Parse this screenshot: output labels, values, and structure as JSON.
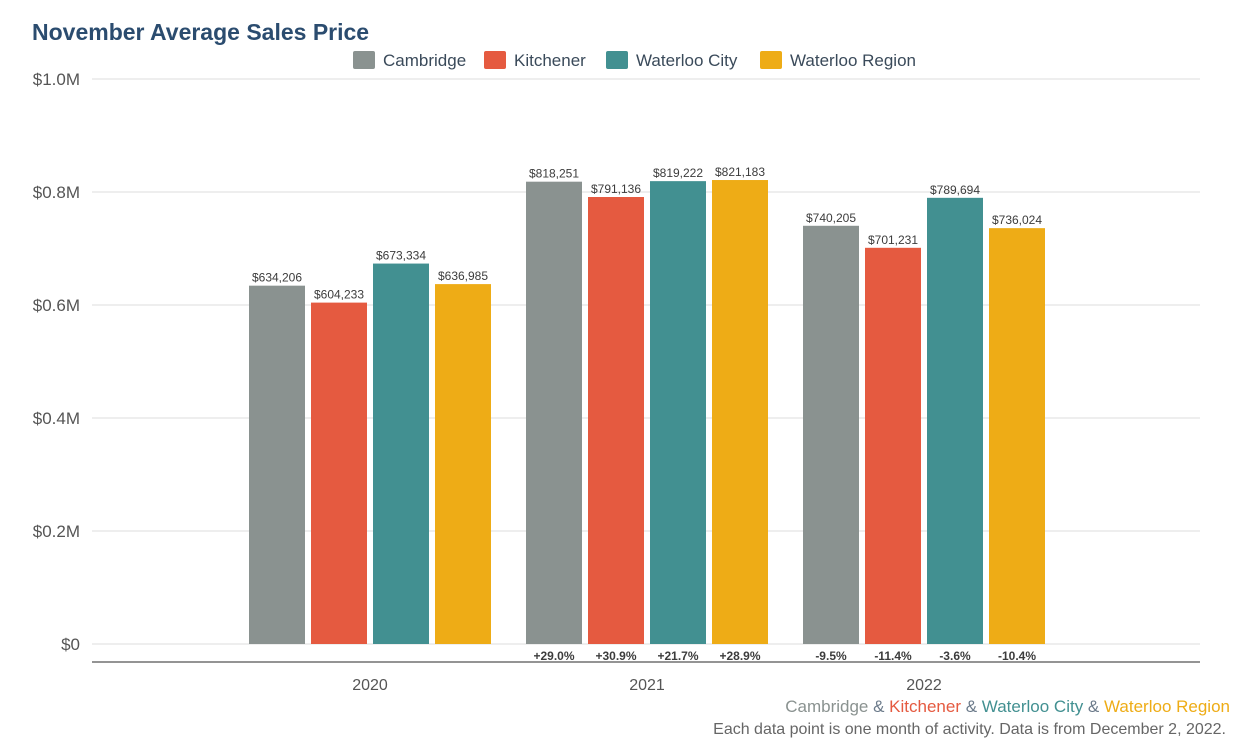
{
  "chart_data": {
    "type": "bar",
    "title": "November Average Sales Price",
    "categories": [
      "2020",
      "2021",
      "2022"
    ],
    "series": [
      {
        "name": "Cambridge",
        "color": "#8a9290",
        "values": [
          634206,
          818251,
          740205
        ],
        "value_labels": [
          "$634,206",
          "$818,251",
          "$740,205"
        ],
        "change_labels": [
          "",
          "+29.0%",
          "-9.5%"
        ]
      },
      {
        "name": "Kitchener",
        "color": "#e55a40",
        "values": [
          604233,
          791136,
          701231
        ],
        "value_labels": [
          "$604,233",
          "$791,136",
          "$701,231"
        ],
        "change_labels": [
          "",
          "+30.9%",
          "-11.4%"
        ]
      },
      {
        "name": "Waterloo City",
        "color": "#429091",
        "values": [
          673334,
          819222,
          789694
        ],
        "value_labels": [
          "$673,334",
          "$819,222",
          "$789,694"
        ],
        "change_labels": [
          "",
          "+21.7%",
          "-3.6%"
        ]
      },
      {
        "name": "Waterloo Region",
        "color": "#eeac16",
        "values": [
          636985,
          821183,
          736024
        ],
        "value_labels": [
          "$636,985",
          "$821,183",
          "$736,024"
        ],
        "change_labels": [
          "",
          "+28.9%",
          "-10.4%"
        ]
      }
    ],
    "ylim": [
      0,
      1000000
    ],
    "yticks": [
      {
        "value": 0,
        "label": "$0"
      },
      {
        "value": 200000,
        "label": "$0.2M"
      },
      {
        "value": 400000,
        "label": "$0.4M"
      },
      {
        "value": 600000,
        "label": "$0.6M"
      },
      {
        "value": 800000,
        "label": "$0.8M"
      },
      {
        "value": 1000000,
        "label": "$1.0M"
      }
    ],
    "xlabel": "",
    "ylabel": "",
    "grid": true,
    "legend_position": "top"
  },
  "footer": {
    "credit": [
      {
        "text": "Cambridge",
        "color": "#8a9290"
      },
      {
        "text": " & ",
        "color": "#6b7a8a"
      },
      {
        "text": "Kitchener",
        "color": "#e55a40"
      },
      {
        "text": " & ",
        "color": "#6b7a8a"
      },
      {
        "text": "Waterloo City",
        "color": "#429091"
      },
      {
        "text": " & ",
        "color": "#6b7a8a"
      },
      {
        "text": "Waterloo Region",
        "color": "#eeac16"
      }
    ],
    "note": "Each data point is one month of activity. Data is from December 2, 2022."
  }
}
